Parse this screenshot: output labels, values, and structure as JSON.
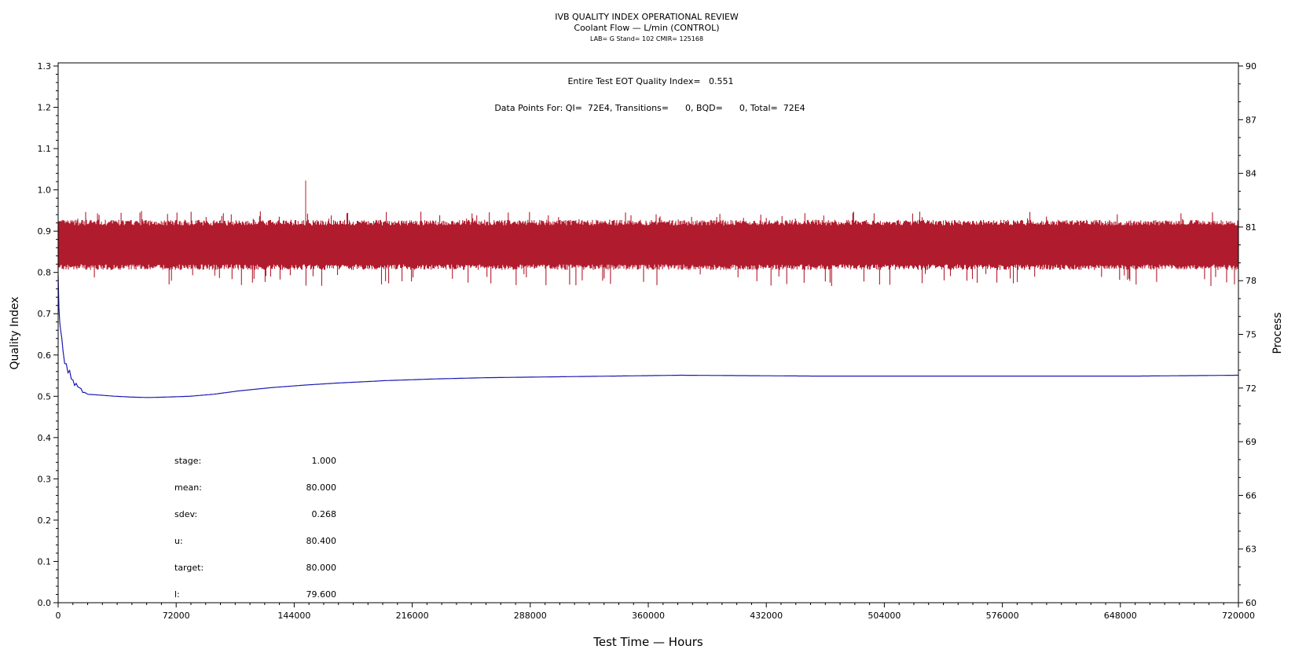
{
  "header": {
    "title": "IVB QUALITY INDEX OPERATIONAL REVIEW",
    "subtitle": "Coolant Flow — L/min (CONTROL)",
    "lab_line": "LAB= G Stand= 102 CMIR= 125168"
  },
  "annotations": {
    "eot_quality": "Entire Test EOT Quality Index=   0.551",
    "data_points": "Data Points For: QI=  72E4, Transitions=      0, BQD=      0, Total=  72E4"
  },
  "stats": [
    {
      "label": "stage:",
      "value": "1.000"
    },
    {
      "label": "mean:",
      "value": "80.000"
    },
    {
      "label": "sdev:",
      "value": "0.268"
    },
    {
      "label": "u:",
      "value": "80.400"
    },
    {
      "label": "target:",
      "value": "80.000"
    },
    {
      "label": "l:",
      "value": "79.600"
    }
  ],
  "colors": {
    "process": "#b01c2e",
    "quality_index": "#1a1ab4",
    "axis": "#000000"
  },
  "chart_data": {
    "type": "line",
    "xlabel": "Test Time — Hours",
    "ylabel": "Quality Index",
    "y2label": "Process",
    "xlim": [
      0,
      720000
    ],
    "ylim": [
      0.0,
      1.3
    ],
    "y2lim": [
      60,
      90
    ],
    "xticks": [
      "0",
      "72000",
      "144000",
      "216000",
      "288000",
      "360000",
      "432000",
      "504000",
      "576000",
      "648000",
      "720000"
    ],
    "yticks": [
      "0.0",
      "0.1",
      "0.2",
      "0.3",
      "0.4",
      "0.5",
      "0.6",
      "0.7",
      "0.8",
      "0.9",
      "1.0",
      "1.1",
      "1.2",
      "1.3"
    ],
    "y2ticks": [
      "60",
      "63",
      "66",
      "69",
      "72",
      "75",
      "78",
      "81",
      "84",
      "87",
      "90"
    ],
    "series": [
      {
        "axis": "right",
        "style": "noise-band",
        "center": 80.0,
        "band": [
          78.6,
          81.4
        ],
        "extremes": [
          77.7,
          81.9
        ],
        "spikes": [
          {
            "x": 0,
            "y": 83.0
          },
          {
            "x": 151000,
            "y": 83.6
          }
        ]
      },
      {
        "axis": "left",
        "style": "line",
        "points": [
          [
            0,
            0.78
          ],
          [
            500,
            0.72
          ],
          [
            1500,
            0.66
          ],
          [
            3000,
            0.61
          ],
          [
            5000,
            0.57
          ],
          [
            8000,
            0.545
          ],
          [
            12000,
            0.52
          ],
          [
            18000,
            0.505
          ],
          [
            25000,
            0.503
          ],
          [
            35000,
            0.5
          ],
          [
            45000,
            0.498
          ],
          [
            55000,
            0.497
          ],
          [
            65000,
            0.498
          ],
          [
            80000,
            0.5
          ],
          [
            95000,
            0.505
          ],
          [
            110000,
            0.513
          ],
          [
            130000,
            0.521
          ],
          [
            150000,
            0.527
          ],
          [
            170000,
            0.532
          ],
          [
            200000,
            0.538
          ],
          [
            230000,
            0.542
          ],
          [
            260000,
            0.545
          ],
          [
            300000,
            0.547
          ],
          [
            340000,
            0.549
          ],
          [
            380000,
            0.551
          ],
          [
            420000,
            0.55
          ],
          [
            460000,
            0.549
          ],
          [
            500000,
            0.549
          ],
          [
            540000,
            0.549
          ],
          [
            580000,
            0.549
          ],
          [
            620000,
            0.549
          ],
          [
            660000,
            0.549
          ],
          [
            690000,
            0.55
          ],
          [
            720000,
            0.551
          ]
        ]
      }
    ]
  }
}
